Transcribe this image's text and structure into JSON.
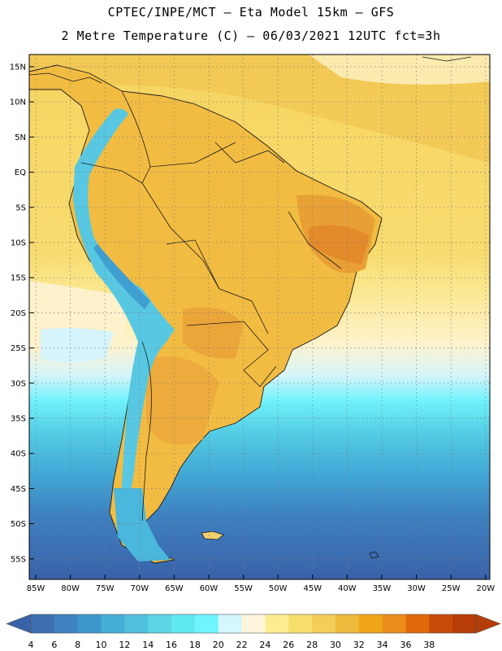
{
  "header": {
    "line1": "CPTEC/INPE/MCT –  Eta Model 15km – GFS",
    "line2": "2 Metre Temperature (C) – 06/03/2021 12UTC fct=3h"
  },
  "axes": {
    "lat_labels": [
      "15N",
      "10N",
      "5N",
      "EQ",
      "5S",
      "10S",
      "15S",
      "20S",
      "25S",
      "30S",
      "35S",
      "40S",
      "45S",
      "50S",
      "55S"
    ],
    "lon_labels": [
      "85W",
      "80W",
      "75W",
      "70W",
      "65W",
      "60W",
      "55W",
      "50W",
      "45W",
      "40W",
      "35W",
      "30W",
      "25W",
      "20W"
    ]
  },
  "colorbar": {
    "labels": [
      "4",
      "6",
      "8",
      "10",
      "12",
      "14",
      "16",
      "18",
      "20",
      "22",
      "24",
      "26",
      "28",
      "30",
      "32",
      "34",
      "36",
      "38"
    ],
    "colors": [
      "#3d6fb0",
      "#3f82c0",
      "#3f98cc",
      "#45aed6",
      "#50c0de",
      "#5cd4e6",
      "#60e8f0",
      "#70f4fc",
      "#d4f6fc",
      "#fdf6dc",
      "#fcee90",
      "#f8de6c",
      "#f4cc58",
      "#ecba3c",
      "#f0a418",
      "#ec8c1c",
      "#e06a0c",
      "#c84a08",
      "#b83c06"
    ],
    "low_arrow_color": "#3a62a8",
    "high_arrow_color": "#b43c08"
  }
}
